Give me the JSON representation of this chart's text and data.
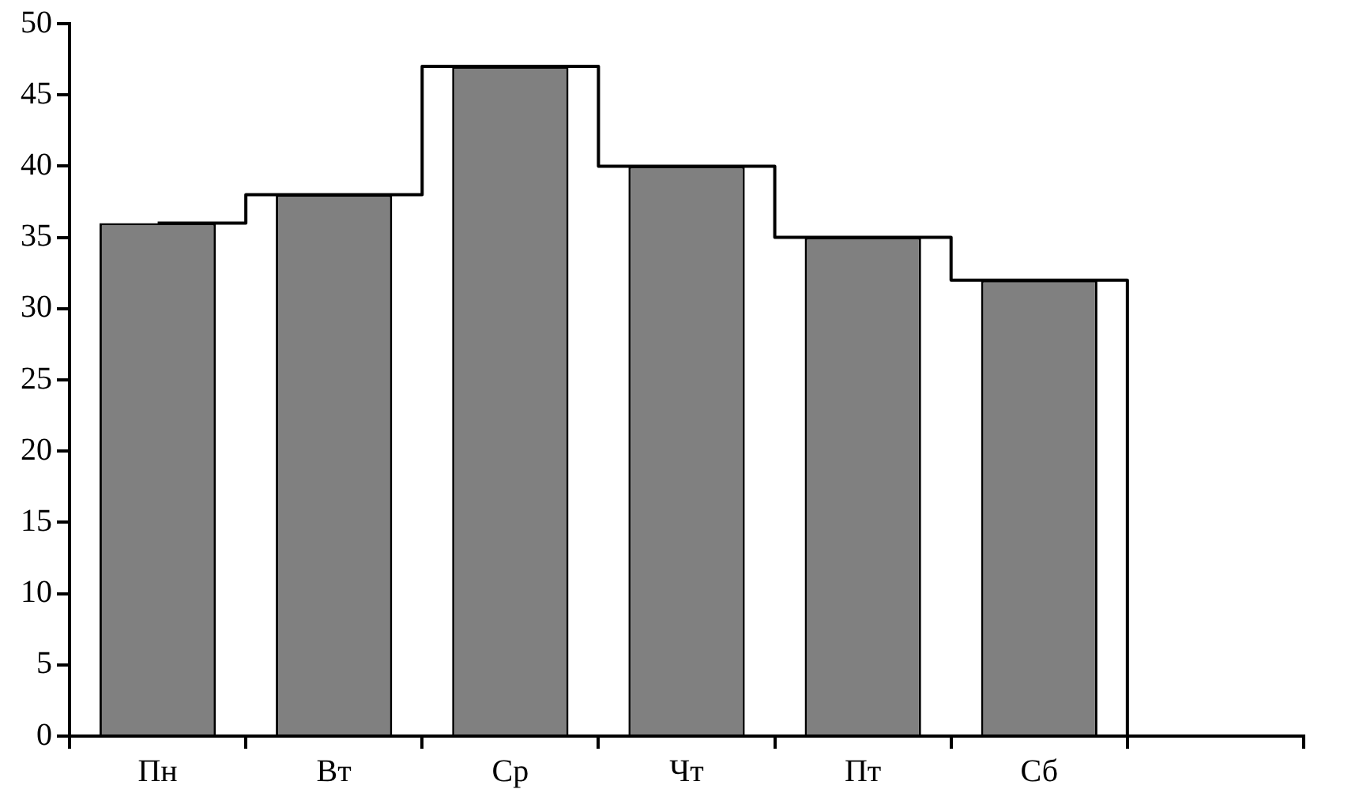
{
  "chart_data": {
    "type": "bar",
    "categories": [
      "Пн",
      "Вт",
      "Ср",
      "Чт",
      "Пт",
      "Сб",
      null
    ],
    "series": [
      {
        "color": "#808080",
        "values": [
          36,
          38,
          47,
          40,
          35,
          32,
          0
        ]
      },
      {
        "type": "step",
        "color": "#000000",
        "values": [
          36,
          38,
          47,
          40,
          35,
          32,
          0
        ]
      }
    ],
    "ylim": [
      0,
      50
    ],
    "yticks": [
      0,
      5,
      10,
      15,
      20,
      25,
      30,
      35,
      40,
      45,
      50
    ],
    "grid": false,
    "legend": false
  }
}
